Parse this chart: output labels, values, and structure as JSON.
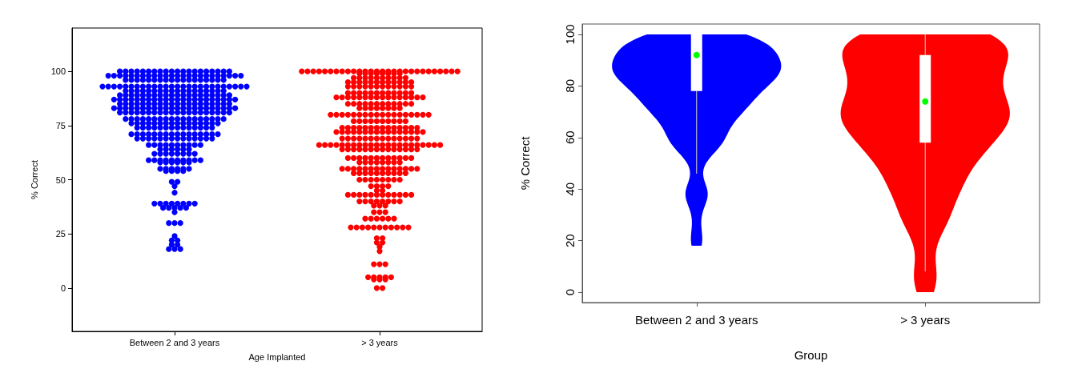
{
  "chart_data": [
    {
      "type": "scatter",
      "xlabel": "Age Implanted",
      "ylabel": "% Correct",
      "categories": [
        "Between 2 and 3 years",
        "> 3 years"
      ],
      "marker": "circle",
      "ylim": [
        -20,
        120
      ],
      "yticks": [
        0,
        25,
        50,
        75,
        100
      ],
      "series": [
        {
          "color": "#0000ff",
          "x": [
            "Between 2 and 3 years",
            "Between 2 and 3 years",
            "Between 2 and 3 years",
            "Between 2 and 3 years",
            "Between 2 and 3 years",
            "Between 2 and 3 years",
            "Between 2 and 3 years",
            "Between 2 and 3 years",
            "Between 2 and 3 years",
            "Between 2 and 3 years",
            "Between 2 and 3 years",
            "Between 2 and 3 years",
            "Between 2 and 3 years",
            "Between 2 and 3 years",
            "Between 2 and 3 years",
            "Between 2 and 3 years",
            "Between 2 and 3 years",
            "Between 2 and 3 years",
            "Between 2 and 3 years",
            "Between 2 and 3 years",
            "Between 2 and 3 years",
            "Between 2 and 3 years",
            "Between 2 and 3 years",
            "Between 2 and 3 years",
            "Between 2 and 3 years",
            "Between 2 and 3 years",
            "Between 2 and 3 years",
            "Between 2 and 3 years",
            "Between 2 and 3 years",
            "Between 2 and 3 years",
            "Between 2 and 3 years",
            "Between 2 and 3 years",
            "Between 2 and 3 years",
            "Between 2 and 3 years",
            "Between 2 and 3 years",
            "Between 2 and 3 years",
            "Between 2 and 3 years",
            "Between 2 and 3 years",
            "Between 2 and 3 years",
            "Between 2 and 3 years",
            "Between 2 and 3 years",
            "Between 2 and 3 years",
            "Between 2 and 3 years",
            "Between 2 and 3 years",
            "Between 2 and 3 years",
            "Between 2 and 3 years",
            "Between 2 and 3 years",
            "Between 2 and 3 years",
            "Between 2 and 3 years",
            "Between 2 and 3 years",
            "Between 2 and 3 years",
            "Between 2 and 3 years",
            "Between 2 and 3 years",
            "Between 2 and 3 years",
            "Between 2 and 3 years",
            "Between 2 and 3 years",
            "Between 2 and 3 years",
            "Between 2 and 3 years",
            "Between 2 and 3 years",
            "Between 2 and 3 years",
            "Between 2 and 3 years",
            "Between 2 and 3 years",
            "Between 2 and 3 years",
            "Between 2 and 3 years",
            "Between 2 and 3 years",
            "Between 2 and 3 years",
            "Between 2 and 3 years",
            "Between 2 and 3 years",
            "Between 2 and 3 years",
            "Between 2 and 3 years",
            "Between 2 and 3 years",
            "Between 2 and 3 years",
            "Between 2 and 3 years",
            "Between 2 and 3 years",
            "Between 2 and 3 years",
            "Between 2 and 3 years",
            "Between 2 and 3 years",
            "Between 2 and 3 years",
            "Between 2 and 3 years",
            "Between 2 and 3 years",
            "Between 2 and 3 years",
            "Between 2 and 3 years",
            "Between 2 and 3 years",
            "Between 2 and 3 years",
            "Between 2 and 3 years",
            "Between 2 and 3 years",
            "Between 2 and 3 years",
            "Between 2 and 3 years",
            "Between 2 and 3 years",
            "Between 2 and 3 years",
            "Between 2 and 3 years",
            "Between 2 and 3 years",
            "Between 2 and 3 years",
            "Between 2 and 3 years",
            "Between 2 and 3 years",
            "Between 2 and 3 years",
            "Between 2 and 3 years",
            "Between 2 and 3 years",
            "Between 2 and 3 years",
            "Between 2 and 3 years",
            "Between 2 and 3 years",
            "Between 2 and 3 years",
            "Between 2 and 3 years",
            "Between 2 and 3 years",
            "Between 2 and 3 years",
            "Between 2 and 3 years",
            "Between 2 and 3 years",
            "Between 2 and 3 years",
            "Between 2 and 3 years",
            "Between 2 and 3 years",
            "Between 2 and 3 years",
            "Between 2 and 3 years",
            "Between 2 and 3 years",
            "Between 2 and 3 years",
            "Between 2 and 3 years",
            "Between 2 and 3 years",
            "Between 2 and 3 years",
            "Between 2 and 3 years",
            "Between 2 and 3 years",
            "Between 2 and 3 years",
            "Between 2 and 3 years",
            "Between 2 and 3 years",
            "Between 2 and 3 years",
            "Between 2 and 3 years",
            "Between 2 and 3 years",
            "Between 2 and 3 years",
            "Between 2 and 3 years",
            "Between 2 and 3 years",
            "Between 2 and 3 years",
            "Between 2 and 3 years",
            "Between 2 and 3 years",
            "Between 2 and 3 years",
            "Between 2 and 3 years",
            "Between 2 and 3 years",
            "Between 2 and 3 years",
            "Between 2 and 3 years",
            "Between 2 and 3 years",
            "Between 2 and 3 years",
            "Between 2 and 3 years",
            "Between 2 and 3 years",
            "Between 2 and 3 years",
            "Between 2 and 3 years",
            "Between 2 and 3 years",
            "Between 2 and 3 years",
            "Between 2 and 3 years",
            "Between 2 and 3 years",
            "Between 2 and 3 years",
            "Between 2 and 3 years",
            "Between 2 and 3 years",
            "Between 2 and 3 years",
            "Between 2 and 3 years",
            "Between 2 and 3 years",
            "Between 2 and 3 years",
            "Between 2 and 3 years",
            "Between 2 and 3 years",
            "Between 2 and 3 years",
            "Between 2 and 3 years",
            "Between 2 and 3 years",
            "Between 2 and 3 years",
            "Between 2 and 3 years",
            "Between 2 and 3 years",
            "Between 2 and 3 years",
            "Between 2 and 3 years",
            "Between 2 and 3 years",
            "Between 2 and 3 years",
            "Between 2 and 3 years",
            "Between 2 and 3 years",
            "Between 2 and 3 years",
            "Between 2 and 3 years",
            "Between 2 and 3 years",
            "Between 2 and 3 years",
            "Between 2 and 3 years",
            "Between 2 and 3 years",
            "Between 2 and 3 years",
            "Between 2 and 3 years",
            "Between 2 and 3 years",
            "Between 2 and 3 years",
            "Between 2 and 3 years",
            "Between 2 and 3 years",
            "Between 2 and 3 years",
            "Between 2 and 3 years",
            "Between 2 and 3 years",
            "Between 2 and 3 years",
            "Between 2 and 3 years",
            "Between 2 and 3 years",
            "Between 2 and 3 years",
            "Between 2 and 3 years",
            "Between 2 and 3 years",
            "Between 2 and 3 years",
            "Between 2 and 3 years",
            "Between 2 and 3 years",
            "Between 2 and 3 years",
            "Between 2 and 3 years",
            "Between 2 and 3 years",
            "Between 2 and 3 years",
            "Between 2 and 3 years",
            "Between 2 and 3 years",
            "Between 2 and 3 years",
            "Between 2 and 3 years",
            "Between 2 and 3 years",
            "Between 2 and 3 years",
            "Between 2 and 3 years",
            "Between 2 and 3 years",
            "Between 2 and 3 years",
            "Between 2 and 3 years",
            "Between 2 and 3 years",
            "Between 2 and 3 years",
            "Between 2 and 3 years",
            "Between 2 and 3 years",
            "Between 2 and 3 years",
            "Between 2 and 3 years",
            "Between 2 and 3 years",
            "Between 2 and 3 years",
            "Between 2 and 3 years",
            "Between 2 and 3 years",
            "Between 2 and 3 years",
            "Between 2 and 3 years",
            "Between 2 and 3 years",
            "Between 2 and 3 years",
            "Between 2 and 3 years",
            "Between 2 and 3 years",
            "Between 2 and 3 years",
            "Between 2 and 3 years",
            "Between 2 and 3 years",
            "Between 2 and 3 years",
            "Between 2 and 3 years",
            "Between 2 and 3 years",
            "Between 2 and 3 years",
            "Between 2 and 3 years",
            "Between 2 and 3 years",
            "Between 2 and 3 years",
            "Between 2 and 3 years",
            "Between 2 and 3 years",
            "Between 2 and 3 years",
            "Between 2 and 3 years",
            "Between 2 and 3 years",
            "Between 2 and 3 years",
            "Between 2 and 3 years",
            "Between 2 and 3 years",
            "Between 2 and 3 years",
            "Between 2 and 3 years",
            "Between 2 and 3 years",
            "Between 2 and 3 years",
            "Between 2 and 3 years",
            "Between 2 and 3 years",
            "Between 2 and 3 years",
            "Between 2 and 3 years",
            "Between 2 and 3 years",
            "Between 2 and 3 years",
            "Between 2 and 3 years",
            "Between 2 and 3 years",
            "Between 2 and 3 years",
            "Between 2 and 3 years",
            "Between 2 and 3 years",
            "Between 2 and 3 years",
            "Between 2 and 3 years",
            "Between 2 and 3 years",
            "Between 2 and 3 years",
            "Between 2 and 3 years",
            "Between 2 and 3 years",
            "Between 2 and 3 years",
            "Between 2 and 3 years",
            "Between 2 and 3 years",
            "Between 2 and 3 years",
            "Between 2 and 3 years",
            "Between 2 and 3 years",
            "Between 2 and 3 years",
            "Between 2 and 3 years",
            "Between 2 and 3 years",
            "Between 2 and 3 years",
            "Between 2 and 3 years",
            "Between 2 and 3 years",
            "Between 2 and 3 years",
            "Between 2 and 3 years",
            "Between 2 and 3 years",
            "Between 2 and 3 years",
            "Between 2 and 3 years",
            "Between 2 and 3 years",
            "Between 2 and 3 years",
            "Between 2 and 3 years",
            "Between 2 and 3 years",
            "Between 2 and 3 years",
            "Between 2 and 3 years",
            "Between 2 and 3 years",
            "Between 2 and 3 years",
            "Between 2 and 3 years",
            "Between 2 and 3 years",
            "Between 2 and 3 years",
            "Between 2 and 3 years",
            "Between 2 and 3 years",
            "Between 2 and 3 years",
            "Between 2 and 3 years",
            "Between 2 and 3 years",
            "Between 2 and 3 years",
            "Between 2 and 3 years",
            "Between 2 and 3 years",
            "Between 2 and 3 years",
            "Between 2 and 3 years",
            "Between 2 and 3 years",
            "Between 2 and 3 years",
            "Between 2 and 3 years",
            "Between 2 and 3 years",
            "Between 2 and 3 years",
            "Between 2 and 3 years",
            "Between 2 and 3 years",
            "Between 2 and 3 years",
            "Between 2 and 3 years",
            "Between 2 and 3 years",
            "Between 2 and 3 years",
            "Between 2 and 3 years",
            "Between 2 and 3 years",
            "Between 2 and 3 years",
            "Between 2 and 3 years",
            "Between 2 and 3 years",
            "Between 2 and 3 years",
            "Between 2 and 3 years",
            "Between 2 and 3 years",
            "Between 2 and 3 years",
            "Between 2 and 3 years",
            "Between 2 and 3 years",
            "Between 2 and 3 years",
            "Between 2 and 3 years",
            "Between 2 and 3 years",
            "Between 2 and 3 years",
            "Between 2 and 3 years",
            "Between 2 and 3 years",
            "Between 2 and 3 years",
            "Between 2 and 3 years",
            "Between 2 and 3 years",
            "Between 2 and 3 years",
            "Between 2 and 3 years",
            "Between 2 and 3 years",
            "Between 2 and 3 years",
            "Between 2 and 3 years",
            "Between 2 and 3 years",
            "Between 2 and 3 years",
            "Between 2 and 3 years",
            "Between 2 and 3 years",
            "Between 2 and 3 years",
            "Between 2 and 3 years",
            "Between 2 and 3 years",
            "Between 2 and 3 years",
            "Between 2 and 3 years",
            "Between 2 and 3 years",
            "Between 2 and 3 years",
            "Between 2 and 3 years",
            "Between 2 and 3 years",
            "Between 2 and 3 years",
            "Between 2 and 3 years",
            "Between 2 and 3 years",
            "Between 2 and 3 years",
            "Between 2 and 3 years",
            "Between 2 and 3 years",
            "Between 2 and 3 years",
            "Between 2 and 3 years",
            "Between 2 and 3 years",
            "Between 2 and 3 years",
            "Between 2 and 3 years",
            "Between 2 and 3 years",
            "Between 2 and 3 years",
            "Between 2 and 3 years",
            "Between 2 and 3 years",
            "Between 2 and 3 years",
            "Between 2 and 3 years",
            "Between 2 and 3 years",
            "Between 2 and 3 years",
            "Between 2 and 3 years"
          ],
          "values": [
            100,
            100,
            100,
            100,
            100,
            100,
            100,
            100,
            100,
            100,
            100,
            100,
            100,
            100,
            100,
            100,
            100,
            100,
            100,
            100,
            98,
            98,
            98,
            98,
            98,
            98,
            98,
            98,
            98,
            98,
            98,
            98,
            98,
            98,
            98,
            98,
            98,
            98,
            98,
            98,
            98,
            98,
            98,
            98,
            96,
            96,
            96,
            96,
            96,
            96,
            96,
            96,
            96,
            96,
            96,
            96,
            96,
            96,
            96,
            96,
            96,
            96,
            93,
            93,
            93,
            93,
            93,
            93,
            93,
            93,
            93,
            93,
            93,
            93,
            93,
            93,
            93,
            93,
            93,
            93,
            93,
            93,
            93,
            93,
            93,
            93,
            93,
            93,
            91,
            91,
            91,
            91,
            91,
            91,
            91,
            91,
            91,
            91,
            91,
            91,
            91,
            91,
            91,
            91,
            91,
            91,
            89,
            89,
            89,
            89,
            89,
            89,
            89,
            89,
            89,
            89,
            89,
            89,
            89,
            89,
            89,
            89,
            89,
            89,
            89,
            89,
            87,
            87,
            87,
            87,
            87,
            87,
            87,
            87,
            87,
            87,
            87,
            87,
            87,
            87,
            87,
            87,
            87,
            87,
            87,
            87,
            87,
            87,
            85,
            85,
            85,
            85,
            85,
            85,
            85,
            85,
            85,
            85,
            85,
            85,
            85,
            85,
            85,
            85,
            85,
            85,
            85,
            85,
            83,
            83,
            83,
            83,
            83,
            83,
            83,
            83,
            83,
            83,
            83,
            83,
            83,
            83,
            83,
            83,
            83,
            83,
            83,
            83,
            83,
            83,
            81,
            81,
            81,
            81,
            81,
            81,
            81,
            81,
            81,
            81,
            81,
            81,
            81,
            81,
            81,
            81,
            81,
            81,
            81,
            81,
            78,
            78,
            78,
            78,
            78,
            78,
            78,
            78,
            78,
            78,
            78,
            78,
            78,
            78,
            78,
            78,
            78,
            78,
            76,
            76,
            76,
            76,
            76,
            76,
            76,
            76,
            76,
            76,
            76,
            76,
            76,
            76,
            76,
            76,
            74,
            74,
            74,
            74,
            74,
            74,
            74,
            74,
            74,
            74,
            74,
            74,
            74,
            74,
            71,
            71,
            71,
            71,
            71,
            71,
            71,
            71,
            71,
            71,
            71,
            71,
            71,
            71,
            71,
            71,
            69,
            69,
            69,
            69,
            69,
            69,
            69,
            69,
            69,
            69,
            69,
            69,
            69,
            69,
            66,
            66,
            66,
            66,
            66,
            66,
            66,
            66,
            66,
            66,
            64,
            64,
            64,
            64,
            64,
            64,
            62,
            62,
            62,
            62,
            62,
            62,
            62,
            62,
            59,
            59,
            59,
            59,
            59,
            59,
            59,
            59,
            59,
            59,
            58,
            58,
            58,
            58,
            58,
            58,
            55,
            55,
            55,
            55,
            55,
            55,
            54,
            54,
            54,
            54,
            49,
            49,
            47,
            44,
            39,
            39,
            39,
            39,
            39,
            39,
            39,
            39,
            37,
            37,
            37,
            37,
            37,
            35,
            30,
            30,
            30,
            24,
            22,
            22,
            20,
            20,
            18,
            18,
            18
          ]
        },
        {
          "color": "#ff0000",
          "x": [
            "> 3 years",
            "> 3 years",
            "> 3 years",
            "> 3 years",
            "> 3 years",
            "> 3 years",
            "> 3 years",
            "> 3 years",
            "> 3 years",
            "> 3 years",
            "> 3 years",
            "> 3 years",
            "> 3 years",
            "> 3 years",
            "> 3 years",
            "> 3 years",
            "> 3 years",
            "> 3 years",
            "> 3 years",
            "> 3 years",
            "> 3 years",
            "> 3 years",
            "> 3 years",
            "> 3 years",
            "> 3 years",
            "> 3 years",
            "> 3 years",
            "> 3 years",
            "> 3 years",
            "> 3 years",
            "> 3 years",
            "> 3 years",
            "> 3 years",
            "> 3 years",
            "> 3 years",
            "> 3 years",
            "> 3 years",
            "> 3 years",
            "> 3 years",
            "> 3 years",
            "> 3 years",
            "> 3 years",
            "> 3 years",
            "> 3 years",
            "> 3 years",
            "> 3 years",
            "> 3 years",
            "> 3 years",
            "> 3 years",
            "> 3 years",
            "> 3 years",
            "> 3 years",
            "> 3 years",
            "> 3 years",
            "> 3 years",
            "> 3 years",
            "> 3 years",
            "> 3 years",
            "> 3 years",
            "> 3 years",
            "> 3 years",
            "> 3 years",
            "> 3 years",
            "> 3 years",
            "> 3 years",
            "> 3 years",
            "> 3 years",
            "> 3 years",
            "> 3 years",
            "> 3 years",
            "> 3 years",
            "> 3 years",
            "> 3 years",
            "> 3 years",
            "> 3 years",
            "> 3 years",
            "> 3 years",
            "> 3 years",
            "> 3 years",
            "> 3 years",
            "> 3 years",
            "> 3 years",
            "> 3 years",
            "> 3 years",
            "> 3 years",
            "> 3 years",
            "> 3 years",
            "> 3 years",
            "> 3 years",
            "> 3 years",
            "> 3 years",
            "> 3 years",
            "> 3 years",
            "> 3 years",
            "> 3 years",
            "> 3 years",
            "> 3 years",
            "> 3 years",
            "> 3 years",
            "> 3 years",
            "> 3 years",
            "> 3 years",
            "> 3 years",
            "> 3 years",
            "> 3 years",
            "> 3 years",
            "> 3 years",
            "> 3 years",
            "> 3 years",
            "> 3 years",
            "> 3 years",
            "> 3 years",
            "> 3 years",
            "> 3 years",
            "> 3 years",
            "> 3 years",
            "> 3 years",
            "> 3 years",
            "> 3 years",
            "> 3 years",
            "> 3 years",
            "> 3 years",
            "> 3 years",
            "> 3 years",
            "> 3 years",
            "> 3 years",
            "> 3 years",
            "> 3 years",
            "> 3 years",
            "> 3 years",
            "> 3 years",
            "> 3 years",
            "> 3 years",
            "> 3 years",
            "> 3 years",
            "> 3 years",
            "> 3 years",
            "> 3 years",
            "> 3 years",
            "> 3 years",
            "> 3 years",
            "> 3 years",
            "> 3 years",
            "> 3 years",
            "> 3 years",
            "> 3 years",
            "> 3 years",
            "> 3 years",
            "> 3 years",
            "> 3 years",
            "> 3 years",
            "> 3 years",
            "> 3 years",
            "> 3 years",
            "> 3 years",
            "> 3 years",
            "> 3 years",
            "> 3 years",
            "> 3 years",
            "> 3 years",
            "> 3 years",
            "> 3 years",
            "> 3 years",
            "> 3 years",
            "> 3 years",
            "> 3 years",
            "> 3 years",
            "> 3 years",
            "> 3 years",
            "> 3 years",
            "> 3 years",
            "> 3 years",
            "> 3 years",
            "> 3 years",
            "> 3 years",
            "> 3 years",
            "> 3 years",
            "> 3 years",
            "> 3 years",
            "> 3 years",
            "> 3 years",
            "> 3 years",
            "> 3 years",
            "> 3 years",
            "> 3 years",
            "> 3 years",
            "> 3 years",
            "> 3 years",
            "> 3 years",
            "> 3 years",
            "> 3 years",
            "> 3 years",
            "> 3 years",
            "> 3 years",
            "> 3 years",
            "> 3 years",
            "> 3 years",
            "> 3 years",
            "> 3 years",
            "> 3 years",
            "> 3 years",
            "> 3 years",
            "> 3 years",
            "> 3 years",
            "> 3 years",
            "> 3 years",
            "> 3 years",
            "> 3 years",
            "> 3 years",
            "> 3 years",
            "> 3 years",
            "> 3 years",
            "> 3 years",
            "> 3 years",
            "> 3 years",
            "> 3 years",
            "> 3 years",
            "> 3 years",
            "> 3 years",
            "> 3 years",
            "> 3 years",
            "> 3 years",
            "> 3 years",
            "> 3 years",
            "> 3 years",
            "> 3 years",
            "> 3 years",
            "> 3 years",
            "> 3 years",
            "> 3 years",
            "> 3 years",
            "> 3 years",
            "> 3 years",
            "> 3 years",
            "> 3 years",
            "> 3 years",
            "> 3 years",
            "> 3 years",
            "> 3 years",
            "> 3 years",
            "> 3 years",
            "> 3 years",
            "> 3 years",
            "> 3 years",
            "> 3 years",
            "> 3 years",
            "> 3 years",
            "> 3 years",
            "> 3 years",
            "> 3 years",
            "> 3 years",
            "> 3 years",
            "> 3 years",
            "> 3 years",
            "> 3 years",
            "> 3 years",
            "> 3 years",
            "> 3 years",
            "> 3 years",
            "> 3 years",
            "> 3 years",
            "> 3 years",
            "> 3 years",
            "> 3 years",
            "> 3 years",
            "> 3 years",
            "> 3 years",
            "> 3 years",
            "> 3 years",
            "> 3 years",
            "> 3 years",
            "> 3 years",
            "> 3 years",
            "> 3 years",
            "> 3 years",
            "> 3 years",
            "> 3 years",
            "> 3 years",
            "> 3 years",
            "> 3 years",
            "> 3 years",
            "> 3 years",
            "> 3 years",
            "> 3 years",
            "> 3 years",
            "> 3 years",
            "> 3 years",
            "> 3 years",
            "> 3 years",
            "> 3 years",
            "> 3 years",
            "> 3 years",
            "> 3 years",
            "> 3 years",
            "> 3 years",
            "> 3 years",
            "> 3 years",
            "> 3 years",
            "> 3 years",
            "> 3 years",
            "> 3 years",
            "> 3 years",
            "> 3 years",
            "> 3 years",
            "> 3 years",
            "> 3 years",
            "> 3 years",
            "> 3 years",
            "> 3 years",
            "> 3 years",
            "> 3 years",
            "> 3 years",
            "> 3 years",
            "> 3 years",
            "> 3 years",
            "> 3 years",
            "> 3 years",
            "> 3 years",
            "> 3 years",
            "> 3 years",
            "> 3 years",
            "> 3 years",
            "> 3 years",
            "> 3 years",
            "> 3 years",
            "> 3 years",
            "> 3 years",
            "> 3 years",
            "> 3 years",
            "> 3 years",
            "> 3 years",
            "> 3 years",
            "> 3 years",
            "> 3 years",
            "> 3 years",
            "> 3 years",
            "> 3 years",
            "> 3 years",
            "> 3 years",
            "> 3 years",
            "> 3 years",
            "> 3 years",
            "> 3 years",
            "> 3 years",
            "> 3 years",
            "> 3 years"
          ],
          "values": [
            100,
            100,
            100,
            100,
            100,
            100,
            100,
            100,
            100,
            100,
            100,
            100,
            100,
            100,
            100,
            100,
            100,
            100,
            100,
            100,
            100,
            100,
            100,
            100,
            100,
            100,
            100,
            100,
            99,
            99,
            99,
            99,
            99,
            99,
            99,
            99,
            97,
            97,
            97,
            97,
            97,
            97,
            97,
            97,
            97,
            97,
            95,
            95,
            95,
            95,
            95,
            95,
            95,
            95,
            95,
            95,
            95,
            95,
            93,
            93,
            93,
            93,
            93,
            93,
            93,
            93,
            93,
            93,
            93,
            93,
            90,
            90,
            90,
            90,
            90,
            90,
            90,
            90,
            90,
            90,
            90,
            90,
            88,
            88,
            88,
            88,
            88,
            88,
            88,
            88,
            88,
            88,
            88,
            88,
            88,
            88,
            88,
            88,
            85,
            85,
            85,
            85,
            85,
            85,
            85,
            85,
            85,
            85,
            85,
            85,
            83,
            83,
            83,
            83,
            83,
            83,
            83,
            83,
            80,
            80,
            80,
            80,
            80,
            80,
            80,
            80,
            80,
            80,
            80,
            80,
            80,
            80,
            80,
            80,
            80,
            80,
            77,
            77,
            77,
            77,
            77,
            77,
            77,
            77,
            77,
            77,
            74,
            74,
            74,
            74,
            74,
            74,
            74,
            74,
            74,
            74,
            74,
            74,
            74,
            74,
            72,
            72,
            72,
            72,
            72,
            72,
            72,
            72,
            72,
            72,
            72,
            72,
            72,
            72,
            72,
            72,
            69,
            69,
            69,
            69,
            69,
            69,
            69,
            69,
            69,
            69,
            69,
            69,
            69,
            69,
            66,
            66,
            66,
            66,
            66,
            66,
            66,
            66,
            66,
            66,
            66,
            66,
            66,
            66,
            66,
            66,
            66,
            66,
            66,
            66,
            66,
            66,
            64,
            64,
            64,
            64,
            64,
            64,
            64,
            64,
            64,
            64,
            64,
            64,
            64,
            64,
            60,
            60,
            60,
            60,
            60,
            60,
            60,
            60,
            60,
            60,
            60,
            60,
            58,
            58,
            58,
            58,
            58,
            58,
            58,
            58,
            55,
            55,
            55,
            55,
            55,
            55,
            55,
            55,
            55,
            55,
            55,
            55,
            55,
            55,
            53,
            53,
            53,
            53,
            53,
            53,
            53,
            53,
            53,
            53,
            50,
            50,
            50,
            50,
            50,
            50,
            50,
            50,
            47,
            47,
            47,
            47,
            45,
            45,
            43,
            43,
            43,
            43,
            43,
            43,
            43,
            43,
            43,
            43,
            43,
            43,
            40,
            40,
            40,
            40,
            40,
            40,
            40,
            40,
            38,
            38,
            38,
            35,
            35,
            35,
            32,
            32,
            32,
            32,
            32,
            32,
            28,
            28,
            28,
            28,
            28,
            28,
            28,
            28,
            28,
            28,
            28,
            23,
            23,
            21,
            21,
            19,
            17,
            11,
            11,
            11,
            5,
            5,
            5,
            5,
            5,
            4,
            4,
            4,
            0,
            0
          ]
        }
      ]
    },
    {
      "type": "box",
      "xlabel": "Group",
      "ylabel": "% Correct",
      "categories": [
        "Between 2 and 3 years",
        "> 3 years"
      ],
      "colors": [
        "#ffffff",
        "#ffffff"
      ],
      "ylim": [
        -4,
        104
      ],
      "yticks": [
        0,
        20,
        40,
        60,
        80,
        100
      ],
      "boxes": [
        {
          "low": 46,
          "q1": 78,
          "median": 92,
          "q3": 100,
          "high": 100
        },
        {
          "low": 8,
          "q1": 58,
          "median": 74,
          "q3": 92,
          "high": 100
        }
      ]
    }
  ]
}
